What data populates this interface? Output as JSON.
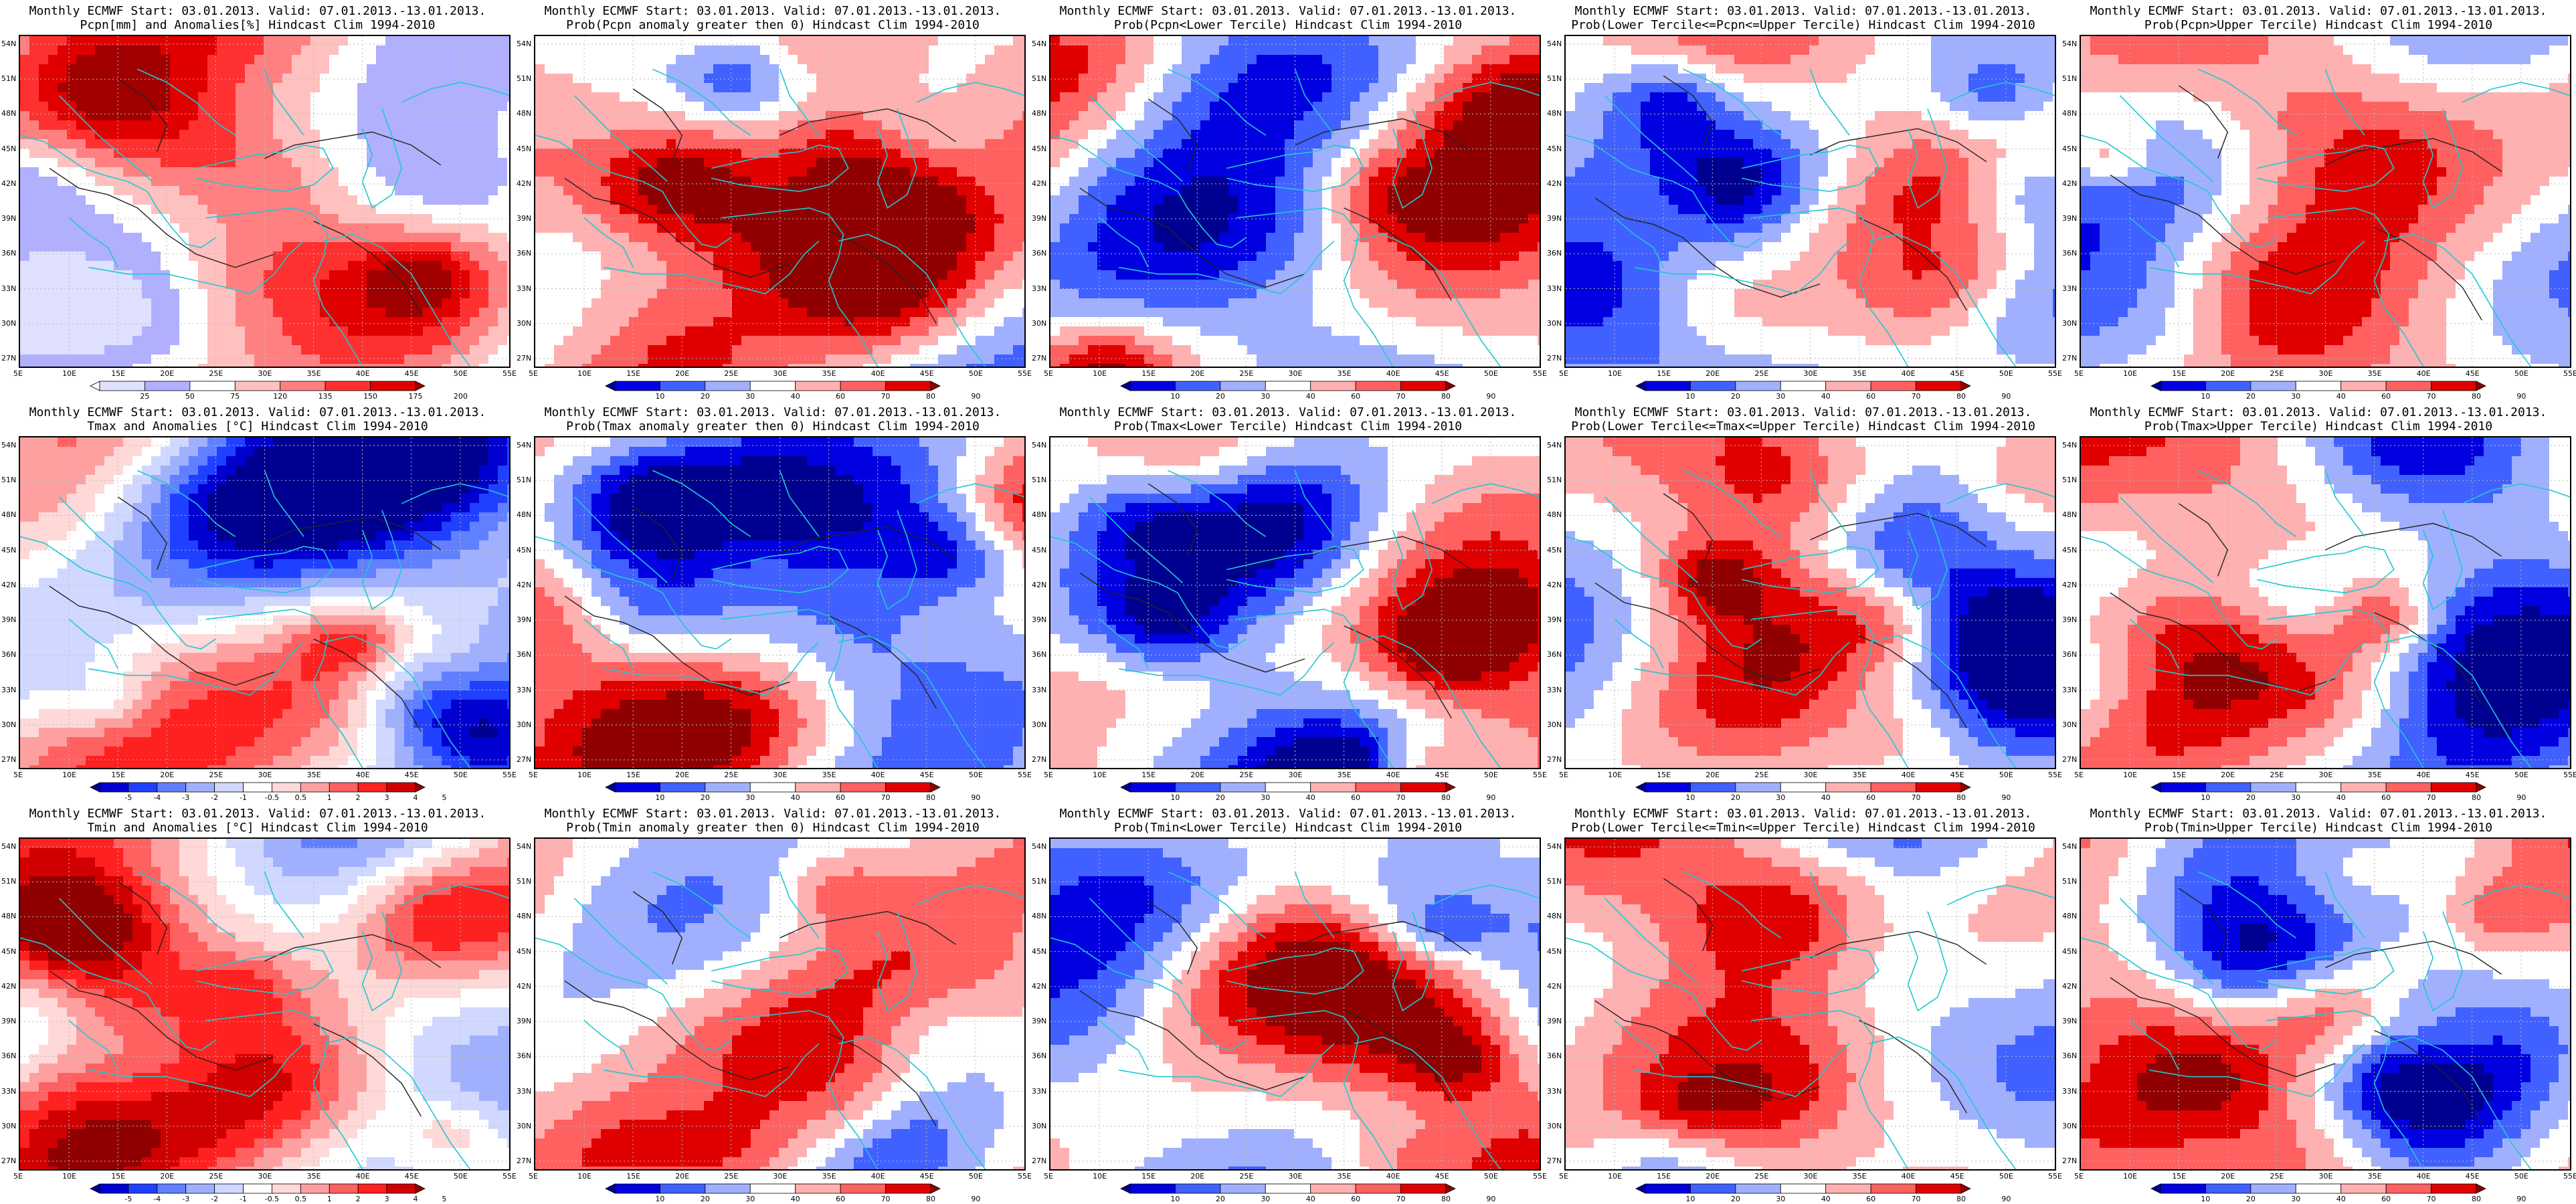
{
  "axes": {
    "lat_ticks": [
      "54N",
      "51N",
      "48N",
      "45N",
      "42N",
      "39N",
      "36N",
      "33N",
      "30N",
      "27N"
    ],
    "lon_ticks": [
      "5E",
      "10E",
      "15E",
      "20E",
      "25E",
      "30E",
      "35E",
      "40E",
      "45E",
      "50E",
      "55E"
    ]
  },
  "colors": {
    "coast": "#20c8d0",
    "contour": "#222222",
    "grid": "#bbbbbb"
  },
  "panels": [
    {
      "id": "pcpn-anom",
      "title1": "Monthly ECMWF Start: 03.01.2013. Valid: 07.01.2013.-13.01.2013.",
      "title2": "Pcpn[mm] and Anomalies[%] Hindcast Clim 1994-2010",
      "colorbar_labels": [
        "25",
        "50",
        "75",
        "120",
        "135",
        "150",
        "175",
        "200"
      ],
      "colorbar_colors": [
        "#ffffff",
        "#e0e0ff",
        "#b0b0ff",
        "#ffffff",
        "#ffc0c0",
        "#ff8080",
        "#ff3030",
        "#e00000",
        "#a00000"
      ],
      "shows": "precipitation anomaly percent"
    },
    {
      "id": "pcpn-gt0",
      "title1": "Monthly ECMWF Start: 03.01.2013. Valid: 07.01.2013.-13.01.2013.",
      "title2": "Prob(Pcpn anomaly greater then 0) Hindcast Clim 1994-2010",
      "colorbar_labels": [
        "10",
        "20",
        "30",
        "40",
        "60",
        "70",
        "80",
        "90"
      ],
      "colorbar_colors": [
        "#000090",
        "#0000e0",
        "#4060ff",
        "#a0b0ff",
        "#ffffff",
        "#ffb0b0",
        "#ff6060",
        "#e00000",
        "#900000"
      ],
      "shows": "probability percent"
    },
    {
      "id": "pcpn-lower",
      "title1": "Monthly ECMWF Start: 03.01.2013. Valid: 07.01.2013.-13.01.2013.",
      "title2": "Prob(Pcpn<Lower Tercile) Hindcast Clim 1994-2010",
      "colorbar_labels": [
        "10",
        "20",
        "30",
        "40",
        "60",
        "70",
        "80",
        "90"
      ],
      "colorbar_colors": [
        "#000090",
        "#0000e0",
        "#4060ff",
        "#a0b0ff",
        "#ffffff",
        "#ffb0b0",
        "#ff6060",
        "#e00000",
        "#900000"
      ],
      "shows": "probability percent"
    },
    {
      "id": "pcpn-middle",
      "title1": "Monthly ECMWF Start: 03.01.2013. Valid: 07.01.2013.-13.01.2013.",
      "title2": "Prob(Lower Tercile<=Pcpn<=Upper Tercile) Hindcast Clim 1994-2010",
      "colorbar_labels": [
        "10",
        "20",
        "30",
        "40",
        "60",
        "70",
        "80",
        "90"
      ],
      "colorbar_colors": [
        "#000090",
        "#0000e0",
        "#4060ff",
        "#a0b0ff",
        "#ffffff",
        "#ffb0b0",
        "#ff6060",
        "#e00000",
        "#900000"
      ],
      "shows": "probability percent"
    },
    {
      "id": "pcpn-upper",
      "title1": "Monthly ECMWF Start: 03.01.2013. Valid: 07.01.2013.-13.01.2013.",
      "title2": "Prob(Pcpn>Upper Tercile) Hindcast Clim 1994-2010",
      "colorbar_labels": [
        "10",
        "20",
        "30",
        "40",
        "60",
        "70",
        "80",
        "90"
      ],
      "colorbar_colors": [
        "#000090",
        "#0000e0",
        "#4060ff",
        "#a0b0ff",
        "#ffffff",
        "#ffb0b0",
        "#ff6060",
        "#e00000",
        "#900000"
      ],
      "shows": "probability percent"
    },
    {
      "id": "tmax-anom",
      "title1": "Monthly ECMWF Start: 03.01.2013. Valid: 07.01.2013.-13.01.2013.",
      "title2": "Tmax and Anomalies [°C] Hindcast Clim 1994-2010",
      "colorbar_labels": [
        "-5",
        "-4",
        "-3",
        "-2",
        "-1",
        "-0.5",
        "0.5",
        "1",
        "2",
        "3",
        "4",
        "5"
      ],
      "colorbar_colors": [
        "#000090",
        "#0000d0",
        "#2040ff",
        "#6080ff",
        "#a0b0ff",
        "#d0d8ff",
        "#ffffff",
        "#ffd8d8",
        "#ffa0a0",
        "#ff6060",
        "#ff2020",
        "#d00000",
        "#900000"
      ],
      "shows": "temperature anomaly"
    },
    {
      "id": "tmax-gt0",
      "title1": "Monthly ECMWF Start: 03.01.2013. Valid: 07.01.2013.-13.01.2013.",
      "title2": "Prob(Tmax anomaly greater then 0) Hindcast Clim 1994-2010",
      "colorbar_labels": [
        "10",
        "20",
        "30",
        "40",
        "60",
        "70",
        "80",
        "90"
      ],
      "colorbar_colors": [
        "#000090",
        "#0000e0",
        "#4060ff",
        "#a0b0ff",
        "#ffffff",
        "#ffb0b0",
        "#ff6060",
        "#e00000",
        "#900000"
      ],
      "shows": "probability percent"
    },
    {
      "id": "tmax-lower",
      "title1": "Monthly ECMWF Start: 03.01.2013. Valid: 07.01.2013.-13.01.2013.",
      "title2": "Prob(Tmax<Lower Tercile) Hindcast Clim 1994-2010",
      "colorbar_labels": [
        "10",
        "20",
        "30",
        "40",
        "60",
        "70",
        "80",
        "90"
      ],
      "colorbar_colors": [
        "#000090",
        "#0000e0",
        "#4060ff",
        "#a0b0ff",
        "#ffffff",
        "#ffb0b0",
        "#ff6060",
        "#e00000",
        "#900000"
      ],
      "shows": "probability percent"
    },
    {
      "id": "tmax-middle",
      "title1": "Monthly ECMWF Start: 03.01.2013. Valid: 07.01.2013.-13.01.2013.",
      "title2": "Prob(Lower Tercile<=Tmax<=Upper Tercile) Hindcast Clim 1994-2010",
      "colorbar_labels": [
        "10",
        "20",
        "30",
        "40",
        "60",
        "70",
        "80",
        "90"
      ],
      "colorbar_colors": [
        "#000090",
        "#0000e0",
        "#4060ff",
        "#a0b0ff",
        "#ffffff",
        "#ffb0b0",
        "#ff6060",
        "#e00000",
        "#900000"
      ],
      "shows": "probability percent"
    },
    {
      "id": "tmax-upper",
      "title1": "Monthly ECMWF Start: 03.01.2013. Valid: 07.01.2013.-13.01.2013.",
      "title2": "Prob(Tmax>Upper Tercile) Hindcast Clim 1994-2010",
      "colorbar_labels": [
        "10",
        "20",
        "30",
        "40",
        "60",
        "70",
        "80",
        "90"
      ],
      "colorbar_colors": [
        "#000090",
        "#0000e0",
        "#4060ff",
        "#a0b0ff",
        "#ffffff",
        "#ffb0b0",
        "#ff6060",
        "#e00000",
        "#900000"
      ],
      "shows": "probability percent"
    },
    {
      "id": "tmin-anom",
      "title1": "Monthly ECMWF Start: 03.01.2013. Valid: 07.01.2013.-13.01.2013.",
      "title2": "Tmin and Anomalies [°C] Hindcast Clim 1994-2010",
      "colorbar_labels": [
        "-5",
        "-4",
        "-3",
        "-2",
        "-1",
        "-0.5",
        "0.5",
        "1",
        "2",
        "3",
        "4",
        "5"
      ],
      "colorbar_colors": [
        "#000090",
        "#0000d0",
        "#2040ff",
        "#6080ff",
        "#a0b0ff",
        "#d0d8ff",
        "#ffffff",
        "#ffd8d8",
        "#ffa0a0",
        "#ff6060",
        "#ff2020",
        "#d00000",
        "#900000"
      ],
      "shows": "temperature anomaly"
    },
    {
      "id": "tmin-gt0",
      "title1": "Monthly ECMWF Start: 03.01.2013. Valid: 07.01.2013.-13.01.2013.",
      "title2": "Prob(Tmin anomaly greater then 0) Hindcast Clim 1994-2010",
      "colorbar_labels": [
        "10",
        "20",
        "30",
        "40",
        "60",
        "70",
        "80",
        "90"
      ],
      "colorbar_colors": [
        "#000090",
        "#0000e0",
        "#4060ff",
        "#a0b0ff",
        "#ffffff",
        "#ffb0b0",
        "#ff6060",
        "#e00000",
        "#900000"
      ],
      "shows": "probability percent"
    },
    {
      "id": "tmin-lower",
      "title1": "Monthly ECMWF Start: 03.01.2013. Valid: 07.01.2013.-13.01.2013.",
      "title2": "Prob(Tmin<Lower Tercile) Hindcast Clim 1994-2010",
      "colorbar_labels": [
        "10",
        "20",
        "30",
        "40",
        "60",
        "70",
        "80",
        "90"
      ],
      "colorbar_colors": [
        "#000090",
        "#0000e0",
        "#4060ff",
        "#a0b0ff",
        "#ffffff",
        "#ffb0b0",
        "#ff6060",
        "#e00000",
        "#900000"
      ],
      "shows": "probability percent"
    },
    {
      "id": "tmin-middle",
      "title1": "Monthly ECMWF Start: 03.01.2013. Valid: 07.01.2013.-13.01.2013.",
      "title2": "Prob(Lower Tercile<=Tmin<=Upper Tercile) Hindcast Clim 1994-2010",
      "colorbar_labels": [
        "10",
        "20",
        "30",
        "40",
        "60",
        "70",
        "80",
        "90"
      ],
      "colorbar_colors": [
        "#000090",
        "#0000e0",
        "#4060ff",
        "#a0b0ff",
        "#ffffff",
        "#ffb0b0",
        "#ff6060",
        "#e00000",
        "#900000"
      ],
      "shows": "probability percent"
    },
    {
      "id": "tmin-upper",
      "title1": "Monthly ECMWF Start: 03.01.2013. Valid: 07.01.2013.-13.01.2013.",
      "title2": "Prob(Tmin>Upper Tercile) Hindcast Clim 1994-2010",
      "colorbar_labels": [
        "10",
        "20",
        "30",
        "40",
        "60",
        "70",
        "80",
        "90"
      ],
      "colorbar_colors": [
        "#000090",
        "#0000e0",
        "#4060ff",
        "#a0b0ff",
        "#ffffff",
        "#ffb0b0",
        "#ff6060",
        "#e00000",
        "#900000"
      ],
      "shows": "probability percent"
    }
  ]
}
